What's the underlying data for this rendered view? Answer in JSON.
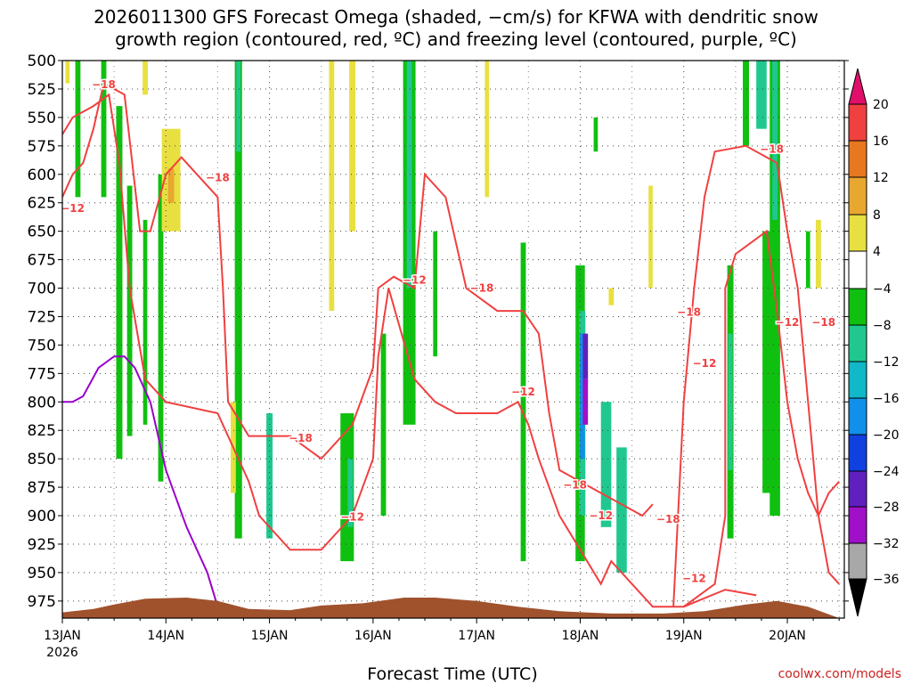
{
  "title": {
    "line1": "2026011300 GFS Forecast Omega (shaded, −cm/s) for KFWA with dendritic snow",
    "line2": "growth region (contoured, red, ºC) and freezing level (contoured, purple, ºC)"
  },
  "credit": "coolwx.com/models",
  "colors": {
    "dgz": "#f04040",
    "freezing": "#9a00cc",
    "terrain": "#a0522d",
    "credit": "#cc2222",
    "grid": "#444444"
  },
  "chart_data": {
    "type": "heatmap",
    "xlabel": "Forecast Time (UTC)",
    "ylabel": "",
    "xlim": [
      "2026-01-13T00Z",
      "2026-01-20T12Z"
    ],
    "ylim": [
      500,
      990
    ],
    "x_ticks": [
      {
        "label": "13JAN",
        "sublabel": "2026",
        "day": 0
      },
      {
        "label": "14JAN",
        "day": 1
      },
      {
        "label": "15JAN",
        "day": 2
      },
      {
        "label": "16JAN",
        "day": 3
      },
      {
        "label": "17JAN",
        "day": 4
      },
      {
        "label": "18JAN",
        "day": 5
      },
      {
        "label": "19JAN",
        "day": 6
      },
      {
        "label": "20JAN",
        "day": 7
      }
    ],
    "y_ticks": [
      500,
      525,
      550,
      575,
      600,
      625,
      650,
      675,
      700,
      725,
      750,
      775,
      800,
      825,
      850,
      875,
      900,
      925,
      950,
      975
    ],
    "grid": true,
    "colorbar": {
      "labels": [
        "20",
        "16",
        "12",
        "8",
        "4",
        "−4",
        "−8",
        "−12",
        "−16",
        "−20",
        "−24",
        "−28",
        "−32",
        "−36"
      ],
      "colors": [
        "#e0106a",
        "#f04040",
        "#e87820",
        "#e8a830",
        "#e8e040",
        "#ffffff",
        "#10c010",
        "#20c890",
        "#10b8c8",
        "#1090e8",
        "#1040e0",
        "#6020c0",
        "#a010c8",
        "#a8a8a8",
        "#000000"
      ]
    },
    "omega_areas": [
      {
        "day": 0.15,
        "p": [
          500,
          620
        ],
        "w": 0.05,
        "c": "#10c010"
      },
      {
        "day": 0.4,
        "p": [
          500,
          620
        ],
        "w": 0.05,
        "c": "#10c010"
      },
      {
        "day": 0.55,
        "p": [
          540,
          850
        ],
        "w": 0.06,
        "c": "#10c010"
      },
      {
        "day": 0.65,
        "p": [
          610,
          830
        ],
        "w": 0.05,
        "c": "#10c010"
      },
      {
        "day": 0.8,
        "p": [
          640,
          820
        ],
        "w": 0.04,
        "c": "#10c010"
      },
      {
        "day": 0.95,
        "p": [
          600,
          870
        ],
        "w": 0.05,
        "c": "#10c010"
      },
      {
        "day": 1.05,
        "p": [
          560,
          650
        ],
        "w": 0.18,
        "c": "#e8e040"
      },
      {
        "day": 1.05,
        "p": [
          595,
          625
        ],
        "w": 0.06,
        "c": "#e8a830"
      },
      {
        "day": 0.05,
        "p": [
          500,
          520
        ],
        "w": 0.04,
        "c": "#e8e040"
      },
      {
        "day": 0.8,
        "p": [
          500,
          530
        ],
        "w": 0.05,
        "c": "#e8e040"
      },
      {
        "day": 1.7,
        "p": [
          500,
          920
        ],
        "w": 0.07,
        "c": "#10c010"
      },
      {
        "day": 1.7,
        "p": [
          500,
          580
        ],
        "w": 0.04,
        "c": "#20c890"
      },
      {
        "day": 1.65,
        "p": [
          800,
          880
        ],
        "w": 0.05,
        "c": "#e8e040"
      },
      {
        "day": 2.0,
        "p": [
          810,
          920
        ],
        "w": 0.06,
        "c": "#20c890"
      },
      {
        "day": 2.6,
        "p": [
          500,
          720
        ],
        "w": 0.05,
        "c": "#e8e040"
      },
      {
        "day": 2.8,
        "p": [
          500,
          650
        ],
        "w": 0.06,
        "c": "#e8e040"
      },
      {
        "day": 2.75,
        "p": [
          810,
          940
        ],
        "w": 0.13,
        "c": "#10c010"
      },
      {
        "day": 2.78,
        "p": [
          850,
          910
        ],
        "w": 0.05,
        "c": "#20c890"
      },
      {
        "day": 3.1,
        "p": [
          740,
          900
        ],
        "w": 0.05,
        "c": "#10c010"
      },
      {
        "day": 3.35,
        "p": [
          500,
          820
        ],
        "w": 0.12,
        "c": "#10c010"
      },
      {
        "day": 3.35,
        "p": [
          500,
          700
        ],
        "w": 0.05,
        "c": "#20c890"
      },
      {
        "day": 3.6,
        "p": [
          650,
          760
        ],
        "w": 0.04,
        "c": "#10c010"
      },
      {
        "day": 4.1,
        "p": [
          500,
          620
        ],
        "w": 0.04,
        "c": "#e8e040"
      },
      {
        "day": 4.45,
        "p": [
          660,
          940
        ],
        "w": 0.05,
        "c": "#10c010"
      },
      {
        "day": 5.0,
        "p": [
          680,
          940
        ],
        "w": 0.09,
        "c": "#10c010"
      },
      {
        "day": 5.02,
        "p": [
          720,
          900
        ],
        "w": 0.06,
        "c": "#20c890"
      },
      {
        "day": 5.02,
        "p": [
          740,
          850
        ],
        "w": 0.05,
        "c": "#1090e8"
      },
      {
        "day": 5.05,
        "p": [
          740,
          780
        ],
        "w": 0.05,
        "c": "#6020c0"
      },
      {
        "day": 5.05,
        "p": [
          780,
          820
        ],
        "w": 0.05,
        "c": "#a010c8"
      },
      {
        "day": 5.15,
        "p": [
          550,
          580
        ],
        "w": 0.04,
        "c": "#10c010"
      },
      {
        "day": 5.25,
        "p": [
          800,
          910
        ],
        "w": 0.1,
        "c": "#20c890"
      },
      {
        "day": 5.4,
        "p": [
          840,
          950
        ],
        "w": 0.1,
        "c": "#20c890"
      },
      {
        "day": 5.3,
        "p": [
          700,
          715
        ],
        "w": 0.05,
        "c": "#e8e040"
      },
      {
        "day": 5.68,
        "p": [
          610,
          700
        ],
        "w": 0.04,
        "c": "#e8e040"
      },
      {
        "day": 6.45,
        "p": [
          680,
          920
        ],
        "w": 0.06,
        "c": "#10c010"
      },
      {
        "day": 6.45,
        "p": [
          740,
          860
        ],
        "w": 0.04,
        "c": "#20c890"
      },
      {
        "day": 6.6,
        "p": [
          500,
          575
        ],
        "w": 0.06,
        "c": "#10c010"
      },
      {
        "day": 6.75,
        "p": [
          500,
          560
        ],
        "w": 0.1,
        "c": "#20c890"
      },
      {
        "day": 6.88,
        "p": [
          500,
          900
        ],
        "w": 0.1,
        "c": "#10c010"
      },
      {
        "day": 6.88,
        "p": [
          500,
          640
        ],
        "w": 0.05,
        "c": "#20c890"
      },
      {
        "day": 6.8,
        "p": [
          650,
          880
        ],
        "w": 0.08,
        "c": "#10c010"
      },
      {
        "day": 7.2,
        "p": [
          650,
          700
        ],
        "w": 0.04,
        "c": "#10c010"
      },
      {
        "day": 7.3,
        "p": [
          640,
          700
        ],
        "w": 0.05,
        "c": "#e8e040"
      }
    ],
    "series": [
      {
        "name": "−18",
        "points": [
          [
            0.0,
            620
          ],
          [
            0.1,
            600
          ],
          [
            0.2,
            590
          ],
          [
            0.3,
            560
          ],
          [
            0.4,
            520
          ],
          [
            0.5,
            525
          ],
          [
            0.6,
            530
          ],
          [
            0.7,
            610
          ],
          [
            0.75,
            650
          ],
          [
            0.85,
            650
          ],
          [
            1.0,
            600
          ],
          [
            1.15,
            585
          ],
          [
            1.3,
            600
          ],
          [
            1.5,
            620
          ],
          [
            1.55,
            700
          ],
          [
            1.6,
            800
          ],
          [
            1.8,
            830
          ],
          [
            2.2,
            830
          ],
          [
            2.5,
            850
          ],
          [
            2.8,
            820
          ],
          [
            3.0,
            770
          ],
          [
            3.05,
            700
          ],
          [
            3.2,
            690
          ],
          [
            3.4,
            700
          ],
          [
            3.5,
            600
          ],
          [
            3.7,
            620
          ],
          [
            3.9,
            700
          ],
          [
            4.2,
            720
          ],
          [
            4.45,
            720
          ],
          [
            4.6,
            740
          ],
          [
            4.7,
            810
          ],
          [
            4.8,
            860
          ],
          [
            5.0,
            870
          ],
          [
            5.2,
            880
          ],
          [
            5.4,
            890
          ],
          [
            5.6,
            900
          ],
          [
            5.7,
            890
          ]
        ]
      },
      {
        "name": "−12",
        "points": [
          [
            0.0,
            565
          ],
          [
            0.1,
            550
          ],
          [
            0.3,
            540
          ],
          [
            0.45,
            530
          ],
          [
            0.55,
            590
          ],
          [
            0.65,
            700
          ],
          [
            0.8,
            780
          ],
          [
            1.0,
            800
          ],
          [
            1.5,
            810
          ],
          [
            1.8,
            870
          ],
          [
            1.9,
            900
          ],
          [
            2.2,
            930
          ],
          [
            2.5,
            930
          ],
          [
            2.8,
            900
          ],
          [
            3.0,
            850
          ],
          [
            3.05,
            760
          ],
          [
            3.15,
            700
          ],
          [
            3.4,
            780
          ],
          [
            3.6,
            800
          ],
          [
            3.8,
            810
          ],
          [
            4.2,
            810
          ],
          [
            4.4,
            800
          ],
          [
            4.5,
            820
          ],
          [
            4.6,
            850
          ],
          [
            4.8,
            900
          ],
          [
            5.0,
            930
          ],
          [
            5.2,
            960
          ],
          [
            5.3,
            940
          ],
          [
            5.5,
            960
          ],
          [
            5.7,
            980
          ],
          [
            6.0,
            980
          ],
          [
            6.4,
            965
          ],
          [
            6.7,
            970
          ]
        ]
      },
      {
        "name": "−12",
        "points": [
          [
            5.9,
            980
          ],
          [
            6.0,
            800
          ],
          [
            6.1,
            700
          ],
          [
            6.2,
            620
          ],
          [
            6.3,
            580
          ],
          [
            6.6,
            575
          ],
          [
            6.9,
            590
          ],
          [
            7.0,
            650
          ],
          [
            7.1,
            700
          ],
          [
            7.2,
            800
          ],
          [
            7.3,
            900
          ],
          [
            7.4,
            950
          ],
          [
            7.5,
            960
          ]
        ]
      },
      {
        "name": "−18",
        "points": [
          [
            6.0,
            980
          ],
          [
            6.3,
            960
          ],
          [
            6.4,
            900
          ],
          [
            6.4,
            700
          ],
          [
            6.5,
            670
          ],
          [
            6.8,
            650
          ],
          [
            6.9,
            720
          ],
          [
            7.0,
            800
          ],
          [
            7.1,
            850
          ],
          [
            7.2,
            880
          ],
          [
            7.3,
            900
          ],
          [
            7.4,
            880
          ],
          [
            7.5,
            870
          ]
        ]
      },
      {
        "name": "Freezing level",
        "points": [
          [
            0.0,
            800
          ],
          [
            0.1,
            800
          ],
          [
            0.2,
            795
          ],
          [
            0.35,
            770
          ],
          [
            0.5,
            760
          ],
          [
            0.6,
            760
          ],
          [
            0.7,
            770
          ],
          [
            0.85,
            800
          ],
          [
            1.0,
            860
          ],
          [
            1.2,
            910
          ],
          [
            1.4,
            950
          ],
          [
            1.5,
            980
          ]
        ]
      }
    ],
    "contour_labels": [
      {
        "text": "−18",
        "day": 0.4,
        "p": 521
      },
      {
        "text": "−12",
        "day": 0.1,
        "p": 630
      },
      {
        "text": "−18",
        "day": 1.5,
        "p": 603
      },
      {
        "text": "−18",
        "day": 2.3,
        "p": 832
      },
      {
        "text": "−12",
        "day": 2.8,
        "p": 901
      },
      {
        "text": "−12",
        "day": 3.4,
        "p": 693
      },
      {
        "text": "−18",
        "day": 4.05,
        "p": 700
      },
      {
        "text": "−12",
        "day": 4.45,
        "p": 791
      },
      {
        "text": "−18",
        "day": 4.95,
        "p": 873
      },
      {
        "text": "−12",
        "day": 5.2,
        "p": 900
      },
      {
        "text": "−18",
        "day": 5.85,
        "p": 903
      },
      {
        "text": "−18",
        "day": 6.05,
        "p": 721
      },
      {
        "text": "−12",
        "day": 6.2,
        "p": 766
      },
      {
        "text": "−12",
        "day": 6.1,
        "p": 955
      },
      {
        "text": "−18",
        "day": 6.85,
        "p": 578
      },
      {
        "text": "−12",
        "day": 7.0,
        "p": 730
      },
      {
        "text": "−18",
        "day": 7.35,
        "p": 730
      }
    ],
    "terrain": [
      [
        0.0,
        985
      ],
      [
        0.3,
        982
      ],
      [
        0.5,
        978
      ],
      [
        0.8,
        973
      ],
      [
        1.2,
        972
      ],
      [
        1.5,
        975
      ],
      [
        1.8,
        982
      ],
      [
        2.2,
        983
      ],
      [
        2.5,
        979
      ],
      [
        2.9,
        977
      ],
      [
        3.3,
        972
      ],
      [
        3.6,
        972
      ],
      [
        4.0,
        975
      ],
      [
        4.4,
        980
      ],
      [
        4.8,
        984
      ],
      [
        5.3,
        986
      ],
      [
        5.8,
        986
      ],
      [
        6.2,
        984
      ],
      [
        6.6,
        978
      ],
      [
        6.9,
        975
      ],
      [
        7.2,
        980
      ],
      [
        7.5,
        990
      ]
    ]
  }
}
